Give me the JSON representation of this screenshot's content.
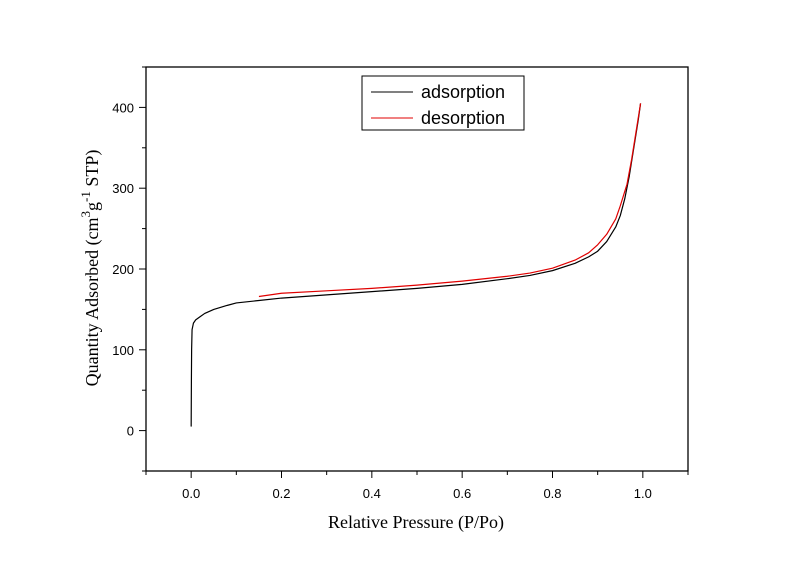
{
  "chart_data": {
    "type": "line",
    "xlabel": "Relative Pressure (P/Po)",
    "ylabel": {
      "base": "Quantity Adsorbed (cm",
      "sup1": "3",
      "mid": "g",
      "sup2": "-1",
      "end": " STP)"
    },
    "xlim": [
      -0.1,
      1.1
    ],
    "ylim": [
      -50,
      450
    ],
    "xticks": [
      0.0,
      0.2,
      0.4,
      0.6,
      0.8,
      1.0
    ],
    "xtick_labels": [
      "0.0",
      "0.2",
      "0.4",
      "0.6",
      "0.8",
      "1.0"
    ],
    "yticks": [
      0,
      100,
      200,
      300,
      400
    ],
    "ytick_labels": [
      "0",
      "100",
      "200",
      "300",
      "400"
    ],
    "grid": false,
    "legend_position": "top-center",
    "series": [
      {
        "name": "adsorption",
        "color": "#000000",
        "points": [
          [
            0.0,
            5
          ],
          [
            0.0005,
            60
          ],
          [
            0.001,
            100
          ],
          [
            0.002,
            125
          ],
          [
            0.005,
            133
          ],
          [
            0.01,
            137
          ],
          [
            0.02,
            141
          ],
          [
            0.03,
            145
          ],
          [
            0.05,
            150
          ],
          [
            0.08,
            155
          ],
          [
            0.1,
            158
          ],
          [
            0.15,
            161
          ],
          [
            0.2,
            164
          ],
          [
            0.3,
            168
          ],
          [
            0.4,
            172
          ],
          [
            0.5,
            176
          ],
          [
            0.6,
            181
          ],
          [
            0.7,
            188
          ],
          [
            0.75,
            192
          ],
          [
            0.8,
            198
          ],
          [
            0.85,
            207
          ],
          [
            0.88,
            215
          ],
          [
            0.9,
            222
          ],
          [
            0.92,
            234
          ],
          [
            0.94,
            252
          ],
          [
            0.95,
            266
          ],
          [
            0.96,
            287
          ],
          [
            0.97,
            315
          ],
          [
            0.98,
            350
          ],
          [
            0.99,
            385
          ],
          [
            0.995,
            405
          ]
        ]
      },
      {
        "name": "desorption",
        "color": "#e00000",
        "points": [
          [
            0.995,
            405
          ],
          [
            0.985,
            370
          ],
          [
            0.975,
            335
          ],
          [
            0.965,
            305
          ],
          [
            0.95,
            278
          ],
          [
            0.94,
            262
          ],
          [
            0.92,
            243
          ],
          [
            0.9,
            230
          ],
          [
            0.88,
            220
          ],
          [
            0.85,
            211
          ],
          [
            0.8,
            201
          ],
          [
            0.75,
            195
          ],
          [
            0.7,
            191
          ],
          [
            0.6,
            185
          ],
          [
            0.5,
            180
          ],
          [
            0.4,
            176
          ],
          [
            0.3,
            173
          ],
          [
            0.2,
            170
          ],
          [
            0.15,
            166
          ]
        ]
      }
    ]
  }
}
